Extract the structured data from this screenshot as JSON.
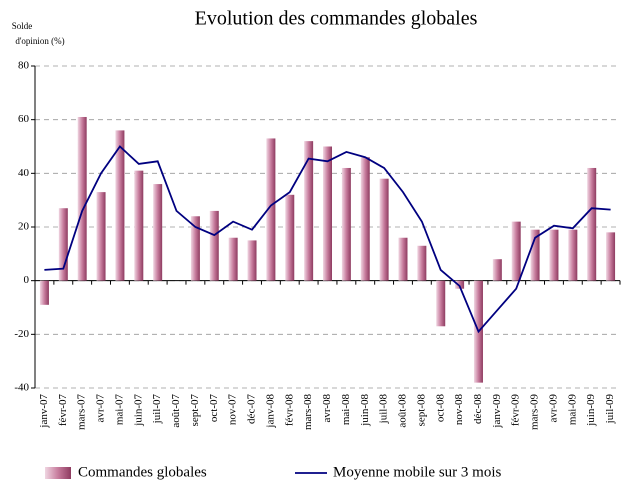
{
  "chart_data": {
    "type": "bar",
    "title": "Evolution des commandes globales",
    "ylabel": [
      "Solde",
      "d'opinion (%)"
    ],
    "categories": [
      "janv-07",
      "févr-07",
      "mars-07",
      "avr-07",
      "mai-07",
      "juin-07",
      "juil-07",
      "août-07",
      "sept-07",
      "oct-07",
      "nov-07",
      "déc-07",
      "janv-08",
      "févr-08",
      "mars-08",
      "avr-08",
      "mai-08",
      "juin-08",
      "juil-08",
      "août-08",
      "sept-08",
      "oct-08",
      "nov-08",
      "déc-08",
      "janv-09",
      "févr-09",
      "mars-09",
      "avr-09",
      "mai-09",
      "juin-09",
      "juil-09"
    ],
    "series": [
      {
        "name": "Commandes globales",
        "type": "bar",
        "color": "#b8688a",
        "values": [
          -9,
          27,
          61,
          33,
          56,
          41,
          36,
          null,
          24,
          26,
          16,
          15,
          53,
          32,
          52,
          50,
          42,
          46,
          38,
          16,
          13,
          -17,
          -3,
          -38,
          8,
          22,
          19,
          19,
          19,
          42,
          18
        ]
      },
      {
        "name": "Moyenne mobile sur 3 mois",
        "type": "line",
        "color": "#000080",
        "values": [
          4,
          4.5,
          26,
          40,
          50,
          43.5,
          44.5,
          26,
          20,
          17,
          22,
          19,
          28,
          33,
          45.5,
          44.5,
          48,
          46,
          42,
          33,
          22,
          4,
          -2,
          -19,
          -11,
          -3,
          16,
          20.5,
          19.5,
          27,
          26.5
        ]
      }
    ],
    "ylim": [
      -40,
      80
    ],
    "yticks": [
      -40,
      -20,
      0,
      20,
      40,
      60,
      80
    ],
    "grid": true
  }
}
